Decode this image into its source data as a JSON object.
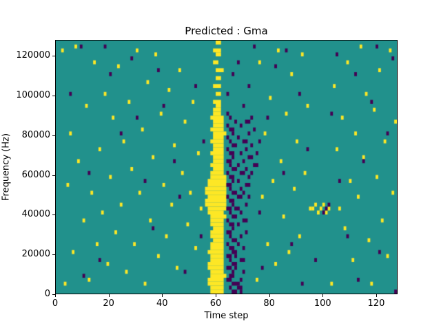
{
  "chart_data": {
    "type": "heatmap",
    "title": "Predicted : Gma",
    "xlabel": "Time step",
    "ylabel": "Frequency (Hz)",
    "xlim": [
      0,
      128
    ],
    "ylim": [
      0,
      128000
    ],
    "x_ticks": [
      0,
      20,
      40,
      60,
      80,
      100,
      120
    ],
    "y_ticks": [
      0,
      20000,
      40000,
      60000,
      80000,
      100000,
      120000
    ],
    "grid": false,
    "legend": "none",
    "colormap": "viridis",
    "background_value_color": "#21918c",
    "value_colors": {
      "yellow": "#fde725",
      "purple": "#440154"
    },
    "cell_size": {
      "x_steps": 1,
      "y_hz": 2000
    },
    "cells": {
      "yellow": [
        [
          58,
          0,
          5
        ],
        [
          58,
          1,
          5
        ],
        [
          57,
          2,
          6
        ],
        [
          57,
          3,
          6
        ],
        [
          58,
          4,
          6
        ],
        [
          58,
          5,
          5
        ],
        [
          57,
          6,
          6
        ],
        [
          57,
          7,
          6
        ],
        [
          58,
          8,
          5
        ],
        [
          58,
          9,
          5
        ],
        [
          57,
          10,
          6
        ],
        [
          58,
          11,
          5
        ],
        [
          58,
          12,
          5
        ],
        [
          59,
          13,
          4
        ],
        [
          58,
          14,
          5
        ],
        [
          58,
          15,
          5
        ],
        [
          59,
          16,
          4
        ],
        [
          58,
          17,
          5
        ],
        [
          58,
          18,
          5
        ],
        [
          58,
          19,
          6
        ],
        [
          57,
          20,
          6
        ],
        [
          57,
          21,
          7
        ],
        [
          56,
          22,
          8
        ],
        [
          56,
          23,
          8
        ],
        [
          57,
          24,
          7
        ],
        [
          56,
          25,
          8
        ],
        [
          56,
          26,
          8
        ],
        [
          57,
          27,
          7
        ],
        [
          57,
          28,
          7
        ],
        [
          58,
          29,
          6
        ],
        [
          58,
          30,
          5
        ],
        [
          59,
          31,
          4
        ],
        [
          58,
          32,
          5
        ],
        [
          59,
          33,
          4
        ],
        [
          59,
          34,
          4
        ],
        [
          58,
          35,
          5
        ],
        [
          59,
          36,
          4
        ],
        [
          59,
          37,
          4
        ],
        [
          58,
          38,
          5
        ],
        [
          59,
          39,
          4
        ],
        [
          59,
          40,
          5
        ],
        [
          58,
          41,
          5
        ],
        [
          59,
          42,
          4
        ],
        [
          59,
          43,
          4
        ],
        [
          58,
          44,
          5
        ],
        [
          59,
          45,
          3
        ],
        [
          59,
          46,
          3
        ],
        [
          60,
          47,
          2
        ],
        [
          59,
          48,
          3
        ],
        [
          60,
          50,
          2
        ],
        [
          59,
          52,
          3
        ],
        [
          60,
          54,
          2
        ],
        [
          60,
          56,
          3
        ],
        [
          59,
          58,
          2
        ],
        [
          60,
          60,
          2
        ],
        [
          59,
          61,
          3
        ],
        [
          60,
          63,
          2
        ],
        [
          2,
          61,
          1
        ],
        [
          3,
          2,
          1
        ],
        [
          4,
          27,
          1
        ],
        [
          5,
          40,
          1
        ],
        [
          6,
          10,
          1
        ],
        [
          7,
          62,
          1
        ],
        [
          8,
          33,
          1
        ],
        [
          10,
          18,
          1
        ],
        [
          11,
          47,
          1
        ],
        [
          12,
          3,
          1
        ],
        [
          13,
          25,
          1
        ],
        [
          14,
          58,
          1
        ],
        [
          15,
          12,
          1
        ],
        [
          16,
          36,
          1
        ],
        [
          17,
          20,
          1
        ],
        [
          18,
          50,
          1
        ],
        [
          19,
          7,
          1
        ],
        [
          20,
          29,
          1
        ],
        [
          21,
          44,
          1
        ],
        [
          22,
          15,
          1
        ],
        [
          23,
          57,
          1
        ],
        [
          24,
          22,
          1
        ],
        [
          25,
          38,
          1
        ],
        [
          26,
          5,
          1
        ],
        [
          27,
          48,
          1
        ],
        [
          28,
          31,
          1
        ],
        [
          29,
          12,
          1
        ],
        [
          30,
          61,
          1
        ],
        [
          31,
          25,
          1
        ],
        [
          32,
          41,
          1
        ],
        [
          33,
          2,
          1
        ],
        [
          34,
          53,
          1
        ],
        [
          35,
          18,
          1
        ],
        [
          36,
          34,
          1
        ],
        [
          37,
          60,
          1
        ],
        [
          38,
          9,
          1
        ],
        [
          39,
          45,
          1
        ],
        [
          40,
          27,
          1
        ],
        [
          41,
          14,
          1
        ],
        [
          42,
          51,
          1
        ],
        [
          43,
          22,
          1
        ],
        [
          44,
          37,
          1
        ],
        [
          45,
          6,
          1
        ],
        [
          46,
          56,
          1
        ],
        [
          47,
          30,
          1
        ],
        [
          48,
          43,
          1
        ],
        [
          49,
          17,
          1
        ],
        [
          50,
          25,
          1
        ],
        [
          51,
          48,
          1
        ],
        [
          52,
          11,
          1
        ],
        [
          53,
          35,
          1
        ],
        [
          54,
          21,
          1
        ],
        [
          75,
          3,
          1
        ],
        [
          76,
          58,
          1
        ],
        [
          77,
          24,
          1
        ],
        [
          78,
          40,
          1
        ],
        [
          79,
          12,
          1
        ],
        [
          80,
          49,
          1
        ],
        [
          81,
          28,
          1
        ],
        [
          82,
          7,
          1
        ],
        [
          83,
          61,
          1
        ],
        [
          84,
          33,
          1
        ],
        [
          85,
          19,
          1
        ],
        [
          86,
          45,
          1
        ],
        [
          87,
          10,
          1
        ],
        [
          88,
          55,
          1
        ],
        [
          89,
          26,
          1
        ],
        [
          90,
          38,
          1
        ],
        [
          91,
          14,
          1
        ],
        [
          92,
          60,
          1
        ],
        [
          93,
          30,
          1
        ],
        [
          94,
          47,
          1
        ],
        [
          95,
          21,
          1
        ],
        [
          96,
          21,
          1
        ],
        [
          97,
          22,
          1
        ],
        [
          98,
          20,
          1
        ],
        [
          99,
          21,
          1
        ],
        [
          100,
          22,
          1
        ],
        [
          101,
          20,
          1
        ],
        [
          102,
          21,
          1
        ],
        [
          103,
          2,
          1
        ],
        [
          104,
          52,
          1
        ],
        [
          105,
          36,
          1
        ],
        [
          106,
          21,
          1
        ],
        [
          107,
          44,
          1
        ],
        [
          108,
          16,
          1
        ],
        [
          109,
          58,
          1
        ],
        [
          110,
          28,
          1
        ],
        [
          111,
          8,
          1
        ],
        [
          112,
          40,
          1
        ],
        [
          113,
          24,
          1
        ],
        [
          114,
          62,
          1
        ],
        [
          115,
          34,
          1
        ],
        [
          116,
          50,
          1
        ],
        [
          117,
          13,
          1
        ],
        [
          118,
          2,
          1
        ],
        [
          119,
          46,
          1
        ],
        [
          120,
          29,
          1
        ],
        [
          121,
          56,
          1
        ],
        [
          122,
          18,
          1
        ],
        [
          123,
          38,
          1
        ],
        [
          124,
          9,
          1
        ],
        [
          125,
          61,
          1
        ],
        [
          126,
          25,
          1
        ],
        [
          127,
          43,
          1
        ]
      ],
      "purple": [
        [
          66,
          0,
          2
        ],
        [
          69,
          0,
          1
        ],
        [
          65,
          1,
          1
        ],
        [
          68,
          1,
          2
        ],
        [
          66,
          2,
          3
        ],
        [
          64,
          3,
          2
        ],
        [
          69,
          3,
          1
        ],
        [
          65,
          4,
          2
        ],
        [
          66,
          5,
          1
        ],
        [
          70,
          5,
          1
        ],
        [
          64,
          6,
          2
        ],
        [
          67,
          6,
          1
        ],
        [
          66,
          7,
          2
        ],
        [
          65,
          8,
          1
        ],
        [
          69,
          8,
          2
        ],
        [
          64,
          9,
          2
        ],
        [
          67,
          9,
          1
        ],
        [
          66,
          10,
          2
        ],
        [
          65,
          11,
          2
        ],
        [
          70,
          11,
          1
        ],
        [
          64,
          12,
          1
        ],
        [
          68,
          12,
          1
        ],
        [
          66,
          13,
          2
        ],
        [
          65,
          14,
          1
        ],
        [
          69,
          14,
          1
        ],
        [
          64,
          15,
          2
        ],
        [
          71,
          15,
          1
        ],
        [
          66,
          16,
          1
        ],
        [
          65,
          17,
          2
        ],
        [
          68,
          17,
          1
        ],
        [
          64,
          18,
          1
        ],
        [
          70,
          18,
          2
        ],
        [
          66,
          19,
          2
        ],
        [
          65,
          20,
          1
        ],
        [
          69,
          20,
          1
        ],
        [
          64,
          21,
          2
        ],
        [
          67,
          21,
          2
        ],
        [
          66,
          22,
          1
        ],
        [
          71,
          22,
          1
        ],
        [
          65,
          23,
          2
        ],
        [
          64,
          24,
          1
        ],
        [
          68,
          24,
          2
        ],
        [
          72,
          24,
          1
        ],
        [
          66,
          25,
          2
        ],
        [
          70,
          25,
          1
        ],
        [
          65,
          26,
          1
        ],
        [
          69,
          26,
          1
        ],
        [
          64,
          27,
          2
        ],
        [
          71,
          27,
          2
        ],
        [
          66,
          28,
          1
        ],
        [
          68,
          28,
          1
        ],
        [
          65,
          29,
          2
        ],
        [
          72,
          29,
          1
        ],
        [
          64,
          30,
          1
        ],
        [
          69,
          30,
          2
        ],
        [
          73,
          30,
          1
        ],
        [
          66,
          31,
          2
        ],
        [
          71,
          31,
          1
        ],
        [
          65,
          32,
          1
        ],
        [
          68,
          32,
          1
        ],
        [
          74,
          32,
          2
        ],
        [
          64,
          33,
          2
        ],
        [
          70,
          33,
          1
        ],
        [
          66,
          34,
          1
        ],
        [
          72,
          34,
          2
        ],
        [
          65,
          35,
          2
        ],
        [
          69,
          35,
          1
        ],
        [
          75,
          35,
          1
        ],
        [
          64,
          36,
          1
        ],
        [
          71,
          36,
          1
        ],
        [
          66,
          37,
          2
        ],
        [
          73,
          37,
          1
        ],
        [
          65,
          38,
          1
        ],
        [
          70,
          38,
          2
        ],
        [
          76,
          38,
          1
        ],
        [
          64,
          39,
          1
        ],
        [
          68,
          39,
          1
        ],
        [
          66,
          40,
          1
        ],
        [
          72,
          40,
          1
        ],
        [
          65,
          41,
          2
        ],
        [
          74,
          41,
          1
        ],
        [
          64,
          42,
          1
        ],
        [
          69,
          42,
          1
        ],
        [
          67,
          43,
          1
        ],
        [
          71,
          43,
          2
        ],
        [
          65,
          44,
          1
        ],
        [
          73,
          44,
          1
        ],
        [
          64,
          45,
          1
        ],
        [
          5,
          50,
          1
        ],
        [
          9,
          62,
          1
        ],
        [
          12,
          30,
          1
        ],
        [
          16,
          8,
          1
        ],
        [
          20,
          55,
          1
        ],
        [
          24,
          40,
          1
        ],
        [
          28,
          59,
          1
        ],
        [
          33,
          28,
          1
        ],
        [
          36,
          16,
          1
        ],
        [
          40,
          47,
          1
        ],
        [
          44,
          33,
          1
        ],
        [
          48,
          5,
          1
        ],
        [
          52,
          52,
          1
        ],
        [
          55,
          38,
          1
        ],
        [
          76,
          20,
          1
        ],
        [
          79,
          44,
          1
        ],
        [
          82,
          57,
          1
        ],
        [
          85,
          30,
          1
        ],
        [
          88,
          12,
          1
        ],
        [
          91,
          50,
          1
        ],
        [
          94,
          36,
          1
        ],
        [
          97,
          8,
          1
        ],
        [
          100,
          20,
          1
        ],
        [
          101,
          21,
          1
        ],
        [
          102,
          22,
          1
        ],
        [
          103,
          45,
          1
        ],
        [
          106,
          28,
          1
        ],
        [
          109,
          14,
          1
        ],
        [
          112,
          55,
          1
        ],
        [
          115,
          33,
          1
        ],
        [
          118,
          48,
          1
        ],
        [
          121,
          10,
          1
        ],
        [
          124,
          40,
          1
        ],
        [
          126,
          59,
          1
        ],
        [
          10,
          4,
          1
        ],
        [
          18,
          62,
          1
        ],
        [
          30,
          44,
          1
        ],
        [
          38,
          56,
          1
        ],
        [
          46,
          24,
          1
        ],
        [
          54,
          14,
          1
        ],
        [
          74,
          62,
          1
        ],
        [
          77,
          6,
          1
        ],
        [
          86,
          61,
          1
        ],
        [
          92,
          2,
          1
        ],
        [
          105,
          60,
          1
        ],
        [
          113,
          3,
          1
        ],
        [
          120,
          62,
          1
        ],
        [
          127,
          0,
          1
        ],
        [
          64,
          50,
          1
        ],
        [
          66,
          55,
          1
        ],
        [
          68,
          58,
          1
        ],
        [
          70,
          47,
          1
        ],
        [
          72,
          52,
          1
        ]
      ]
    }
  }
}
